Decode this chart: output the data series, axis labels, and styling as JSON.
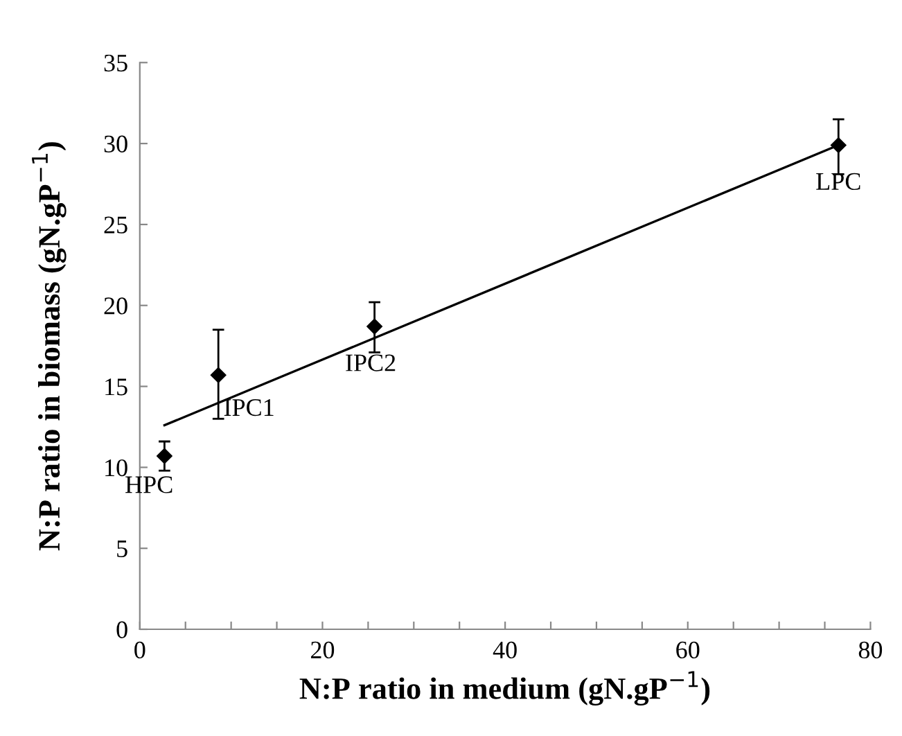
{
  "chart_data": {
    "type": "scatter",
    "xlabel": "N:P ratio in medium (gN.gP$^{−1}$)",
    "ylabel": "N:P ratio in biomass (gN.gP$^{−1}$)",
    "xlim": [
      0,
      80
    ],
    "ylim": [
      0,
      35
    ],
    "xticks": [
      0,
      {
        "value": 5,
        "label": null
      },
      {
        "value": 10,
        "label": null
      },
      {
        "value": 15,
        "label": null
      },
      20,
      {
        "value": 25,
        "label": null
      },
      {
        "value": 30,
        "label": null
      },
      {
        "value": 35,
        "label": null
      },
      40,
      {
        "value": 45,
        "label": null
      },
      {
        "value": 50,
        "label": null
      },
      {
        "value": 55,
        "label": null
      },
      60,
      {
        "value": 65,
        "label": null
      },
      {
        "value": 70,
        "label": null
      },
      {
        "value": 75,
        "label": null
      },
      80
    ],
    "yticks": [
      0,
      5,
      10,
      15,
      20,
      25,
      30,
      35
    ],
    "grid": false,
    "legend": false,
    "series": [
      {
        "color": "#000000",
        "marker": "diamond",
        "x": [
          2.7,
          8.6,
          25.7,
          76.5
        ],
        "values": [
          10.7,
          15.7,
          18.7,
          29.9
        ],
        "errors": [
          [
            9.8,
            11.6
          ],
          [
            13.0,
            18.5
          ],
          [
            17.1,
            20.2
          ],
          [
            28.1,
            31.5
          ]
        ]
      },
      {
        "type": "line",
        "color": "#000000",
        "marker": "none",
        "x": [
          2.7,
          76.5
        ],
        "values": [
          12.6,
          29.9
        ]
      }
    ],
    "annotations": [
      {
        "text": "HPC",
        "x": 2.7,
        "y": 10.7
      },
      {
        "text": "IPC1",
        "x": 8.6,
        "y": 15.7
      },
      {
        "text": "IPC2",
        "x": 25.7,
        "y": 18.7
      },
      {
        "text": "LPC",
        "x": 76.5,
        "y": 29.9
      }
    ]
  }
}
